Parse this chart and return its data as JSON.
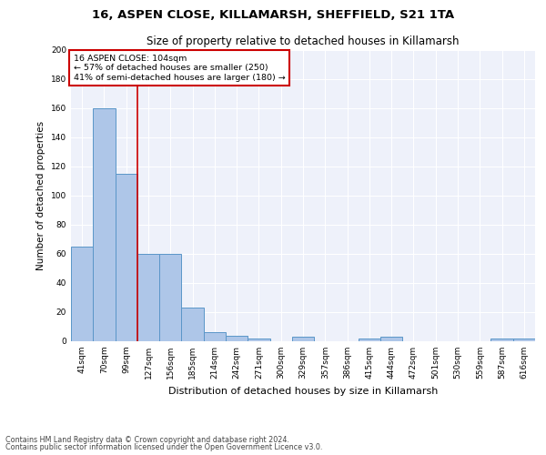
{
  "title1": "16, ASPEN CLOSE, KILLAMARSH, SHEFFIELD, S21 1TA",
  "title2": "Size of property relative to detached houses in Killamarsh",
  "xlabel": "Distribution of detached houses by size in Killamarsh",
  "ylabel": "Number of detached properties",
  "categories": [
    "41sqm",
    "70sqm",
    "99sqm",
    "127sqm",
    "156sqm",
    "185sqm",
    "214sqm",
    "242sqm",
    "271sqm",
    "300sqm",
    "329sqm",
    "357sqm",
    "386sqm",
    "415sqm",
    "444sqm",
    "472sqm",
    "501sqm",
    "530sqm",
    "559sqm",
    "587sqm",
    "616sqm"
  ],
  "values": [
    65,
    160,
    115,
    60,
    60,
    23,
    6,
    4,
    2,
    0,
    3,
    0,
    0,
    2,
    3,
    0,
    0,
    0,
    0,
    2,
    2
  ],
  "bar_color": "#aec6e8",
  "bar_edge_color": "#5a96c8",
  "vline_x": 2.5,
  "vline_color": "#cc0000",
  "annotation_title": "16 ASPEN CLOSE: 104sqm",
  "annotation_line1": "← 57% of detached houses are smaller (250)",
  "annotation_line2": "41% of semi-detached houses are larger (180) →",
  "annotation_box_color": "#cc0000",
  "ylim": [
    0,
    200
  ],
  "yticks": [
    0,
    20,
    40,
    60,
    80,
    100,
    120,
    140,
    160,
    180,
    200
  ],
  "footer1": "Contains HM Land Registry data © Crown copyright and database right 2024.",
  "footer2": "Contains public sector information licensed under the Open Government Licence v3.0.",
  "bg_color": "#eef1fa"
}
